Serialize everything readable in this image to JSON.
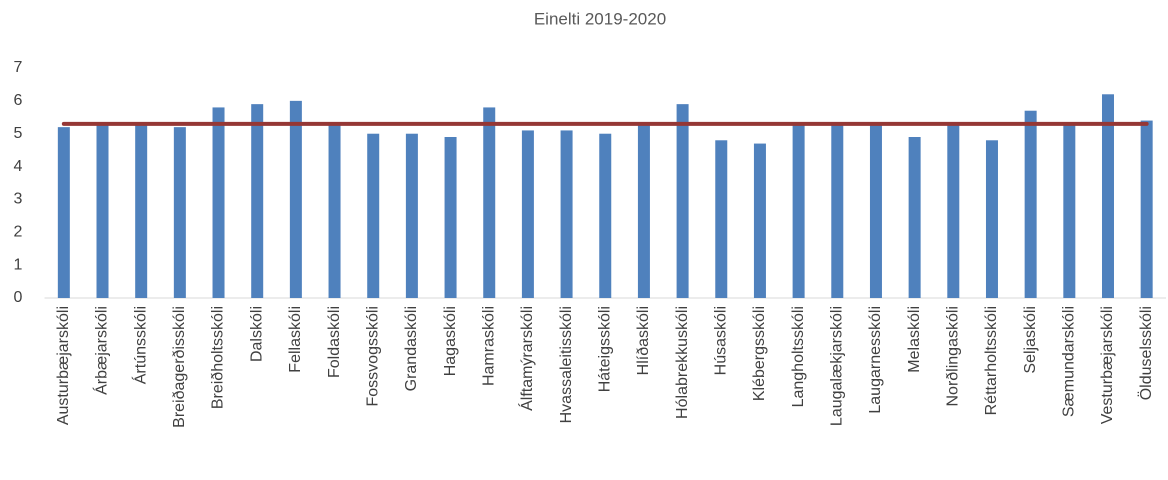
{
  "chart_data": {
    "type": "bar",
    "title": "Einelti 2019-2020",
    "categories": [
      "Austurbæjarskóli",
      "Árbæjarskóli",
      "Ártúnsskóli",
      "Breiðagerðisskóli",
      "Breiðholtsskóli",
      "Dalskóli",
      "Fellaskóli",
      "Foldaskóli",
      "Fossvogsskóli",
      "Grandaskóli",
      "Hagaskóli",
      "Hamraskóli",
      "Álftamýrarskóli",
      "Hvassaleitisskóli",
      "Háteigsskóli",
      "Hlíðaskóli",
      "Hólabrekkuskóli",
      "Húsaskóli",
      "Klébergsskóli",
      "Langholtsskóli",
      "Laugalækjarskóli",
      "Laugarnesskóli",
      "Melaskóli",
      "Norðlingaskóli",
      "Réttarholtsskóli",
      "Seljaskóli",
      "Sæmundarskóli",
      "Vesturbæjarskóli",
      "Ölduselsskóli"
    ],
    "series": [
      {
        "type": "bar",
        "color": "#4f81bd",
        "values": [
          5.2,
          5.3,
          5.3,
          5.2,
          5.8,
          5.9,
          6.0,
          5.3,
          5.0,
          5.0,
          4.9,
          5.8,
          5.1,
          5.1,
          5.0,
          5.3,
          5.9,
          4.8,
          4.7,
          5.3,
          5.3,
          5.3,
          4.9,
          5.3,
          4.8,
          5.7,
          5.3,
          6.2,
          5.4
        ]
      },
      {
        "type": "line",
        "color": "#953735",
        "values": [
          5.3,
          5.3,
          5.3,
          5.3,
          5.3,
          5.3,
          5.3,
          5.3,
          5.3,
          5.3,
          5.3,
          5.3,
          5.3,
          5.3,
          5.3,
          5.3,
          5.3,
          5.3,
          5.3,
          5.3,
          5.3,
          5.3,
          5.3,
          5.3,
          5.3,
          5.3,
          5.3,
          5.3,
          5.3
        ]
      }
    ],
    "ylim": [
      0,
      7
    ],
    "yticks": [
      0,
      1,
      2,
      3,
      4,
      5,
      6,
      7
    ],
    "grid": false
  }
}
